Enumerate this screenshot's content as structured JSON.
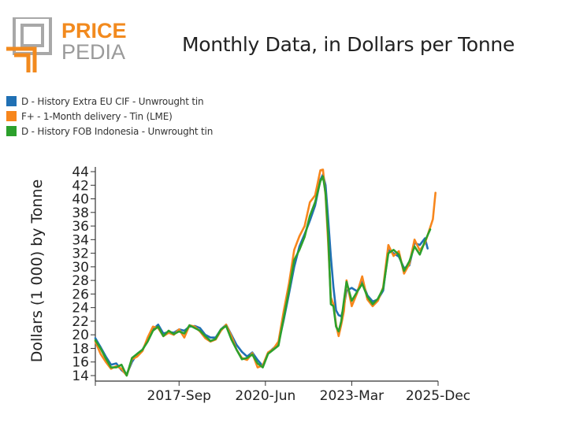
{
  "logo": {
    "line1": "PRICE",
    "line2": "PEDIA",
    "accent_color": "#f28a1e",
    "grey_color": "#9a9a9a"
  },
  "colors": {
    "blue": "#2070b4",
    "orange": "#f7861c",
    "green": "#2ca02c"
  },
  "chart_data": {
    "type": "line",
    "title": "Monthly Data, in Dollars per Tonne",
    "ylabel": "Dollars (1 000) by Tonne",
    "xlabel": "",
    "ylim": [
      14,
      44
    ],
    "xlim": [
      "2015-01",
      "2025-12"
    ],
    "y_ticks": [
      14,
      16,
      18,
      20,
      22,
      24,
      26,
      28,
      30,
      32,
      34,
      36,
      38,
      40,
      42,
      44
    ],
    "x_ticks": [
      {
        "date": "2017-09",
        "label": "2017-Sep"
      },
      {
        "date": "2020-06",
        "label": "2020-Jun"
      },
      {
        "date": "2023-03",
        "label": "2023-Mar"
      },
      {
        "date": "2025-12",
        "label": "2025-Dec"
      }
    ],
    "grid": false,
    "legend_position": "top-left",
    "series": [
      {
        "name": "D - History Extra EU CIF - Unwrought tin",
        "color": "#2070b4",
        "points": [
          [
            "2015-01",
            19.5
          ],
          [
            "2015-03",
            18.2
          ],
          [
            "2015-05",
            16.8
          ],
          [
            "2015-07",
            15.6
          ],
          [
            "2015-09",
            15.8
          ],
          [
            "2015-11",
            14.8
          ],
          [
            "2016-01",
            14.2
          ],
          [
            "2016-03",
            16.0
          ],
          [
            "2016-05",
            17.2
          ],
          [
            "2016-07",
            17.8
          ],
          [
            "2016-09",
            19.2
          ],
          [
            "2016-11",
            20.8
          ],
          [
            "2017-01",
            21.5
          ],
          [
            "2017-03",
            20.2
          ],
          [
            "2017-05",
            20.4
          ],
          [
            "2017-07",
            20.3
          ],
          [
            "2017-09",
            20.8
          ],
          [
            "2017-11",
            20.6
          ],
          [
            "2018-01",
            21.2
          ],
          [
            "2018-03",
            21.3
          ],
          [
            "2018-05",
            21.0
          ],
          [
            "2018-07",
            20.0
          ],
          [
            "2018-09",
            19.6
          ],
          [
            "2018-11",
            19.6
          ],
          [
            "2019-01",
            20.8
          ],
          [
            "2019-03",
            21.5
          ],
          [
            "2019-05",
            20.0
          ],
          [
            "2019-07",
            18.5
          ],
          [
            "2019-09",
            17.5
          ],
          [
            "2019-11",
            16.8
          ],
          [
            "2020-01",
            17.4
          ],
          [
            "2020-03",
            16.3
          ],
          [
            "2020-05",
            15.4
          ],
          [
            "2020-07",
            17.3
          ],
          [
            "2020-09",
            18.0
          ],
          [
            "2020-11",
            18.7
          ],
          [
            "2021-01",
            22.2
          ],
          [
            "2021-03",
            26.0
          ],
          [
            "2021-05",
            30.0
          ],
          [
            "2021-07",
            33.0
          ],
          [
            "2021-09",
            34.8
          ],
          [
            "2021-11",
            36.8
          ],
          [
            "2022-01",
            39.0
          ],
          [
            "2022-03",
            42.8
          ],
          [
            "2022-04",
            43.6
          ],
          [
            "2022-05",
            42.0
          ],
          [
            "2022-06",
            37.0
          ],
          [
            "2022-07",
            31.5
          ],
          [
            "2022-08",
            27.0
          ],
          [
            "2022-09",
            23.6
          ],
          [
            "2022-10",
            22.9
          ],
          [
            "2022-11",
            22.7
          ],
          [
            "2022-12",
            24.2
          ],
          [
            "2023-01",
            26.5
          ],
          [
            "2023-03",
            26.9
          ],
          [
            "2023-05",
            26.4
          ],
          [
            "2023-07",
            27.8
          ],
          [
            "2023-09",
            25.8
          ],
          [
            "2023-11",
            24.9
          ],
          [
            "2024-01",
            25.2
          ],
          [
            "2024-03",
            26.5
          ],
          [
            "2024-05",
            32.5
          ],
          [
            "2024-07",
            32.0
          ],
          [
            "2024-09",
            31.5
          ],
          [
            "2024-11",
            29.8
          ],
          [
            "2025-01",
            30.2
          ],
          [
            "2025-03",
            33.5
          ],
          [
            "2025-05",
            33.2
          ],
          [
            "2025-07",
            34.2
          ],
          [
            "2025-08",
            32.7
          ]
        ]
      },
      {
        "name": "F+ - 1-Month delivery - Tin (LME)",
        "color": "#f7861c",
        "points": [
          [
            "2015-01",
            19.0
          ],
          [
            "2015-03",
            17.2
          ],
          [
            "2015-05",
            16.0
          ],
          [
            "2015-07",
            15.0
          ],
          [
            "2015-09",
            15.4
          ],
          [
            "2015-11",
            15.0
          ],
          [
            "2016-01",
            14.0
          ],
          [
            "2016-03",
            16.4
          ],
          [
            "2016-05",
            16.8
          ],
          [
            "2016-07",
            17.6
          ],
          [
            "2016-09",
            19.6
          ],
          [
            "2016-11",
            21.2
          ],
          [
            "2017-01",
            21.0
          ],
          [
            "2017-03",
            19.8
          ],
          [
            "2017-05",
            20.3
          ],
          [
            "2017-07",
            20.0
          ],
          [
            "2017-09",
            20.8
          ],
          [
            "2017-11",
            19.6
          ],
          [
            "2018-01",
            21.4
          ],
          [
            "2018-03",
            21.2
          ],
          [
            "2018-05",
            20.5
          ],
          [
            "2018-07",
            19.5
          ],
          [
            "2018-09",
            19.0
          ],
          [
            "2018-11",
            19.3
          ],
          [
            "2019-01",
            20.6
          ],
          [
            "2019-03",
            21.5
          ],
          [
            "2019-05",
            19.8
          ],
          [
            "2019-07",
            17.8
          ],
          [
            "2019-09",
            16.6
          ],
          [
            "2019-11",
            16.3
          ],
          [
            "2020-01",
            17.3
          ],
          [
            "2020-03",
            15.2
          ],
          [
            "2020-05",
            15.5
          ],
          [
            "2020-07",
            17.4
          ],
          [
            "2020-09",
            17.9
          ],
          [
            "2020-11",
            19.0
          ],
          [
            "2021-01",
            23.5
          ],
          [
            "2021-03",
            27.5
          ],
          [
            "2021-05",
            32.5
          ],
          [
            "2021-07",
            34.5
          ],
          [
            "2021-09",
            36.0
          ],
          [
            "2021-11",
            39.5
          ],
          [
            "2022-01",
            40.5
          ],
          [
            "2022-03",
            44.2
          ],
          [
            "2022-04",
            44.3
          ],
          [
            "2022-05",
            40.5
          ],
          [
            "2022-06",
            33.5
          ],
          [
            "2022-07",
            25.5
          ],
          [
            "2022-08",
            24.5
          ],
          [
            "2022-09",
            21.5
          ],
          [
            "2022-10",
            19.8
          ],
          [
            "2022-11",
            21.5
          ],
          [
            "2022-12",
            23.5
          ],
          [
            "2023-01",
            28.0
          ],
          [
            "2023-03",
            24.2
          ],
          [
            "2023-05",
            26.1
          ],
          [
            "2023-07",
            28.6
          ],
          [
            "2023-09",
            25.2
          ],
          [
            "2023-11",
            24.2
          ],
          [
            "2024-01",
            25.0
          ],
          [
            "2024-03",
            27.0
          ],
          [
            "2024-05",
            33.2
          ],
          [
            "2024-07",
            31.6
          ],
          [
            "2024-09",
            32.3
          ],
          [
            "2024-11",
            29.0
          ],
          [
            "2025-01",
            30.4
          ],
          [
            "2025-03",
            34.0
          ],
          [
            "2025-05",
            32.4
          ],
          [
            "2025-07",
            33.5
          ],
          [
            "2025-09",
            35.8
          ],
          [
            "2025-10",
            37.0
          ],
          [
            "2025-11",
            40.9
          ]
        ]
      },
      {
        "name": "D - History FOB Indonesia - Unwrought tin",
        "color": "#2ca02c",
        "points": [
          [
            "2015-01",
            19.2
          ],
          [
            "2015-03",
            18.0
          ],
          [
            "2015-05",
            16.5
          ],
          [
            "2015-07",
            15.2
          ],
          [
            "2015-09",
            15.2
          ],
          [
            "2015-11",
            15.6
          ],
          [
            "2016-01",
            14.0
          ],
          [
            "2016-03",
            16.6
          ],
          [
            "2016-05",
            17.2
          ],
          [
            "2016-07",
            17.8
          ],
          [
            "2016-09",
            19.0
          ],
          [
            "2016-11",
            20.6
          ],
          [
            "2017-01",
            21.2
          ],
          [
            "2017-03",
            19.8
          ],
          [
            "2017-05",
            20.6
          ],
          [
            "2017-07",
            20.1
          ],
          [
            "2017-09",
            20.5
          ],
          [
            "2017-11",
            20.2
          ],
          [
            "2018-01",
            21.4
          ],
          [
            "2018-03",
            21.0
          ],
          [
            "2018-05",
            20.6
          ],
          [
            "2018-07",
            19.8
          ],
          [
            "2018-09",
            19.1
          ],
          [
            "2018-11",
            19.4
          ],
          [
            "2019-01",
            20.8
          ],
          [
            "2019-03",
            21.3
          ],
          [
            "2019-05",
            19.3
          ],
          [
            "2019-07",
            17.8
          ],
          [
            "2019-09",
            16.4
          ],
          [
            "2019-11",
            16.6
          ],
          [
            "2020-01",
            17.1
          ],
          [
            "2020-03",
            15.8
          ],
          [
            "2020-05",
            15.2
          ],
          [
            "2020-07",
            17.2
          ],
          [
            "2020-09",
            17.8
          ],
          [
            "2020-11",
            18.4
          ],
          [
            "2021-01",
            22.5
          ],
          [
            "2021-03",
            26.5
          ],
          [
            "2021-05",
            31.0
          ],
          [
            "2021-07",
            32.5
          ],
          [
            "2021-09",
            34.4
          ],
          [
            "2021-11",
            37.5
          ],
          [
            "2022-01",
            39.5
          ],
          [
            "2022-03",
            42.6
          ],
          [
            "2022-04",
            43.3
          ],
          [
            "2022-05",
            40.8
          ],
          [
            "2022-06",
            34.8
          ],
          [
            "2022-07",
            24.5
          ],
          [
            "2022-08",
            24.2
          ],
          [
            "2022-09",
            21.2
          ],
          [
            "2022-10",
            20.5
          ],
          [
            "2022-11",
            22.0
          ],
          [
            "2022-12",
            25.0
          ],
          [
            "2023-01",
            27.8
          ],
          [
            "2023-03",
            25.0
          ],
          [
            "2023-05",
            26.3
          ],
          [
            "2023-07",
            27.5
          ],
          [
            "2023-09",
            25.6
          ],
          [
            "2023-11",
            24.5
          ],
          [
            "2024-01",
            25.3
          ],
          [
            "2024-03",
            26.8
          ],
          [
            "2024-05",
            32.0
          ],
          [
            "2024-07",
            32.5
          ],
          [
            "2024-09",
            31.8
          ],
          [
            "2024-11",
            29.4
          ],
          [
            "2025-01",
            30.8
          ],
          [
            "2025-03",
            33.0
          ],
          [
            "2025-05",
            31.8
          ],
          [
            "2025-07",
            33.8
          ],
          [
            "2025-09",
            35.5
          ]
        ]
      }
    ]
  }
}
